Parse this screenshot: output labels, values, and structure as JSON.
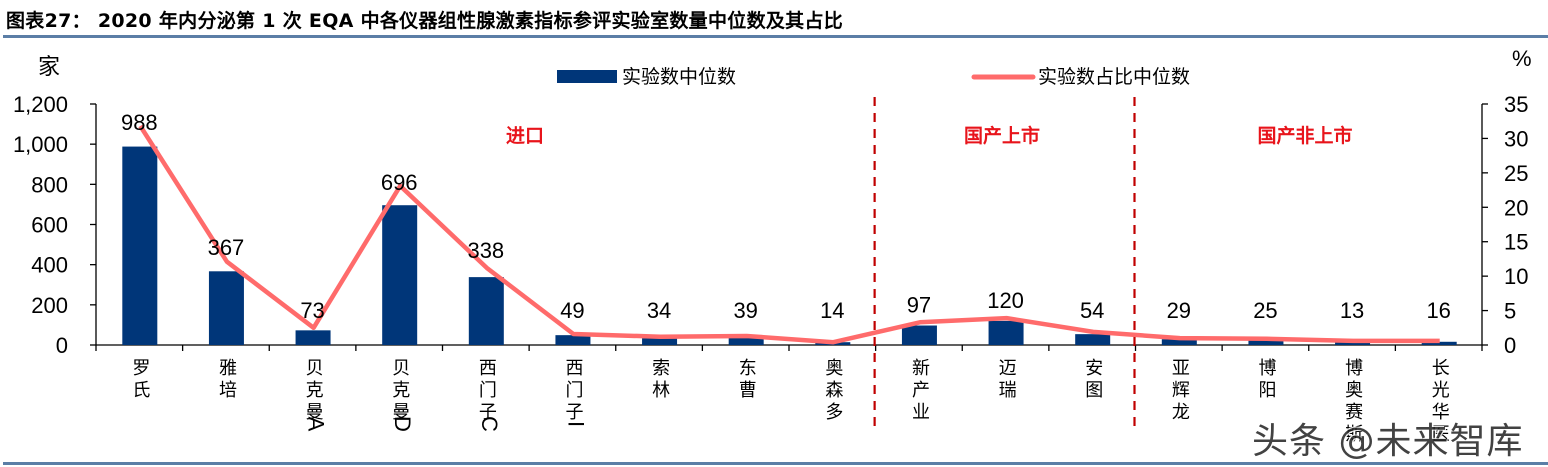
{
  "title": "图表27：  2020 年内分泌第 1 次 EQA 中各仪器组性腺激素指标参评实验室数量中位数及其占比",
  "watermark": "头条 @未来智库",
  "colors": {
    "bar": "#003679",
    "line": "#ff6b6b",
    "divider": "#c00000",
    "group_label": "#e8141b",
    "rule": "#5b7ea6"
  },
  "chart_data": {
    "type": "bar",
    "title": "2020 年内分泌第 1 次 EQA 中各仪器组性腺激素指标参评实验室数量中位数及其占比",
    "xlabel": "",
    "ylabel": "家",
    "ylabel_right": "%",
    "ylim": [
      0,
      1200
    ],
    "ylim_right": [
      0,
      35
    ],
    "yticks": [
      "0",
      "200",
      "400",
      "600",
      "800",
      "1,000",
      "1,200"
    ],
    "yticks_right": [
      "0",
      "5",
      "10",
      "15",
      "20",
      "25",
      "30",
      "35"
    ],
    "grid": false,
    "legend_position": "top",
    "categories": [
      "罗氏",
      "雅培",
      "贝克曼A",
      "贝克曼D",
      "西门子C",
      "西门子I",
      "索林",
      "东曹",
      "奥森多",
      "新产业",
      "迈瑞",
      "安图",
      "亚辉龙",
      "博阳",
      "博奥赛斯",
      "长光华医"
    ],
    "series": [
      {
        "name": "实验数中位数",
        "type": "bar",
        "axis": "left",
        "values": [
          988,
          367,
          73,
          696,
          338,
          49,
          34,
          39,
          14,
          97,
          120,
          54,
          29,
          25,
          13,
          16
        ]
      },
      {
        "name": "实验数占比中位数",
        "type": "line",
        "axis": "right",
        "values": [
          31.8,
          12.1,
          2.5,
          23.1,
          11.2,
          1.6,
          1.2,
          1.3,
          0.4,
          3.3,
          3.9,
          1.9,
          1.0,
          0.9,
          0.6,
          0.6
        ]
      }
    ],
    "annotations": [
      {
        "text": "进口",
        "from": 0,
        "to": 8
      },
      {
        "text": "国产上市",
        "from": 9,
        "to": 11
      },
      {
        "text": "国产非上市",
        "from": 12,
        "to": 15
      }
    ],
    "dividers_after_index": [
      8,
      11
    ]
  }
}
